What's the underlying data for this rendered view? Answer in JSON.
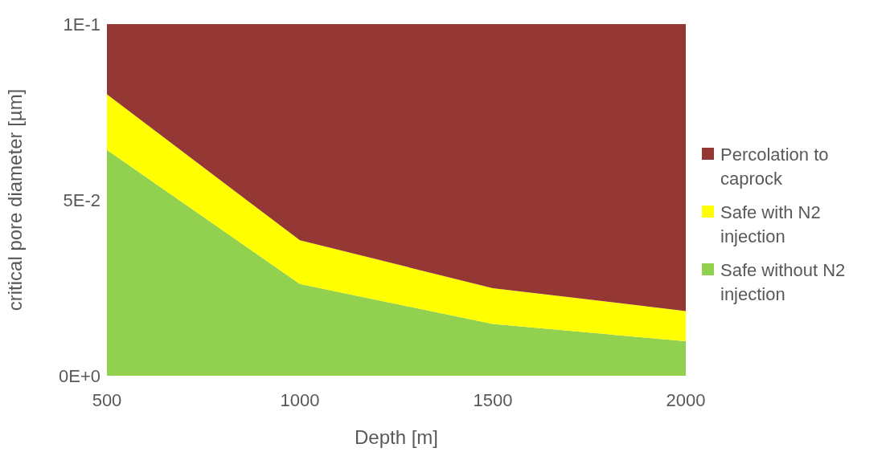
{
  "chart_data": {
    "type": "area",
    "stacked": true,
    "xlabel": "Depth [m]",
    "ylabel": "critical pore diameter [µm]",
    "x": [
      500,
      1000,
      1500,
      2000
    ],
    "series": [
      {
        "name": "Safe without N2 injection",
        "color": "#92d050",
        "values": [
          0.0642,
          0.0261,
          0.0147,
          0.0098
        ]
      },
      {
        "name": "Safe with N2 injection",
        "color": "#ffff00",
        "values": [
          0.0158,
          0.0124,
          0.0102,
          0.0086
        ]
      },
      {
        "name": "Percolation to caprock",
        "color": "#953735",
        "values": [
          0.02,
          0.0615,
          0.0751,
          0.0816
        ]
      }
    ],
    "xlim": [
      500,
      2000
    ],
    "xticks": [
      500,
      1000,
      1500,
      2000
    ],
    "ylim": [
      0,
      0.1
    ],
    "yticks": [
      {
        "value": 0,
        "label": "0E+0"
      },
      {
        "value": 0.05,
        "label": "5E-2"
      },
      {
        "value": 0.1,
        "label": "1E-1"
      }
    ],
    "grid": false,
    "legend": "right"
  }
}
